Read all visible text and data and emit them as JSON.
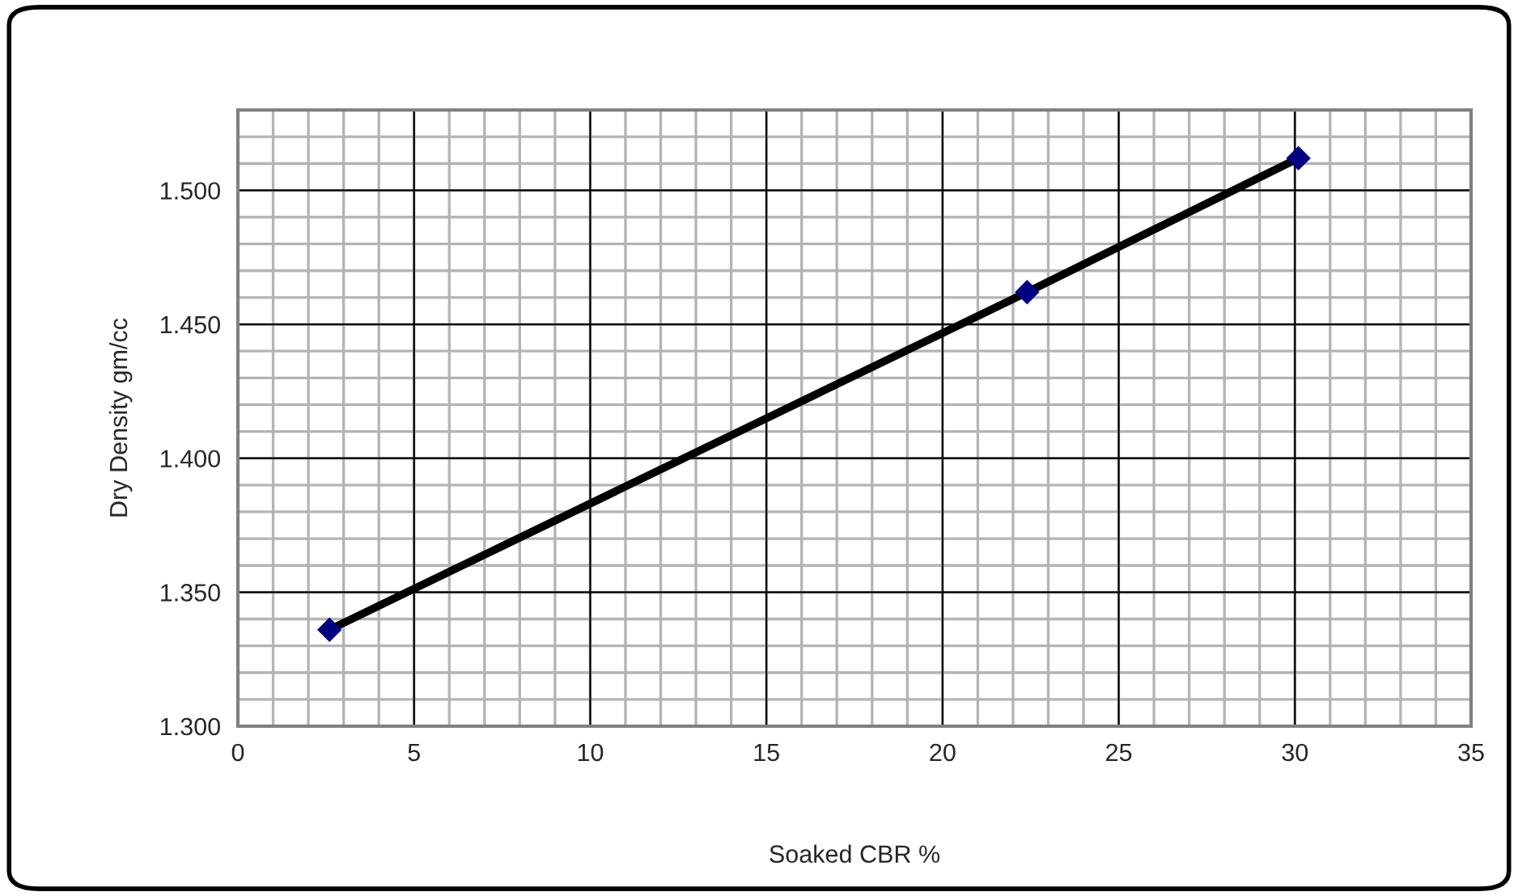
{
  "chart_data": {
    "type": "line",
    "xlabel": "Soaked CBR %",
    "ylabel": "Dry Density gm/cc",
    "x": [
      2.6,
      22.4,
      30.1
    ],
    "series": [
      {
        "color": "#000000",
        "values": [
          1.336,
          1.462,
          1.512
        ]
      }
    ],
    "marker": "diamond",
    "line_style": "solid",
    "xlim": [
      0,
      35
    ],
    "xticks": [
      0,
      5,
      10,
      15,
      20,
      25,
      30,
      35
    ],
    "ylim": [
      1.3,
      1.53
    ],
    "yticks": [
      {
        "value": 1.3,
        "label": "1.300"
      },
      {
        "value": 1.35,
        "label": "1.350"
      },
      {
        "value": 1.4,
        "label": "1.400"
      },
      {
        "value": 1.45,
        "label": "1.450"
      },
      {
        "value": 1.5,
        "label": "1.500"
      }
    ],
    "grid": true,
    "legend": false
  }
}
